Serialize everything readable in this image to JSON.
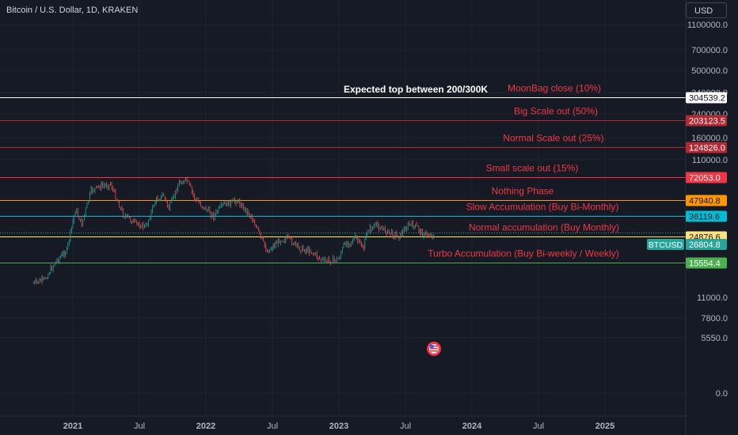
{
  "header": {
    "title": "Bitcoin / U.S. Dollar, 1D, KRAKEN",
    "currency_button": "USD"
  },
  "chart_data": {
    "type": "line",
    "symbol": "BTCUSD",
    "last_price": "26804.8",
    "scale": "log",
    "grid": true,
    "x_ticks": [
      "2021",
      "Jul",
      "2022",
      "Jul",
      "2023",
      "Jul",
      "2024",
      "Jul",
      "2025"
    ],
    "y_ticks": [
      "1100000.0",
      "700000.0",
      "500000.0",
      "340000.0",
      "240000.0",
      "160000.0",
      "110000.0",
      "11000.0",
      "7800.0",
      "5550.0",
      "0.0"
    ],
    "annotation": "Expected top between 200/300K",
    "levels": [
      {
        "label": "MoonBag close (10%)",
        "price": "304539.2",
        "color": "#ffffff",
        "label_color": "#f23645",
        "badge_bg": "#ffffff",
        "badge_fg": "#131722"
      },
      {
        "label": "Big Scale out (50%)",
        "price": "203123.5",
        "color": "#b22833",
        "label_color": "#f23645",
        "badge_bg": "#b22833",
        "badge_fg": "#ffffff"
      },
      {
        "label": "Normal Scale out (25%)",
        "price": "124826.0",
        "color": "#b22833",
        "label_color": "#f23645",
        "badge_bg": "#b22833",
        "badge_fg": "#ffffff"
      },
      {
        "label": "Small scale out (15%)",
        "price": "72053.0",
        "color": "#f23645",
        "label_color": "#f23645",
        "badge_bg": "#f23645",
        "badge_fg": "#ffffff"
      },
      {
        "label": "Nothing Phase",
        "price": "47940.8",
        "color": "#ff9800",
        "label_color": "#f23645",
        "badge_bg": "#ff9800",
        "badge_fg": "#131722"
      },
      {
        "label": "Slow Accumulation (Buy Bi-Monthly)",
        "price": "36119.6",
        "color": "#00bcd4",
        "label_color": "#f23645",
        "badge_bg": "#00bcd4",
        "badge_fg": "#131722"
      },
      {
        "label": "Normal accumulation (Buy Monthly)",
        "price": "24876.6",
        "color": "#ffeb3b",
        "label_color": "#f23645",
        "badge_bg": "#ffe082",
        "badge_fg": "#131722"
      },
      {
        "label": "Turbo Accumulation (Buy Bi-weekly / Weekly)",
        "price": "15554.4",
        "color": "#4caf50",
        "label_color": "#f23645",
        "badge_bg": "#4caf50",
        "badge_fg": "#ffffff"
      }
    ],
    "series": [
      {
        "date": [
          "2020-09-15",
          "2020-10-15",
          "2020-11-15",
          "2020-12-15",
          "2021-01-08",
          "2021-01-25",
          "2021-02-20",
          "2021-03-13",
          "2021-04-14",
          "2021-05-19",
          "2021-06-22",
          "2021-07-20",
          "2021-08-15",
          "2021-09-07",
          "2021-09-21",
          "2021-10-20",
          "2021-11-10",
          "2021-12-04",
          "2022-01-22",
          "2022-02-15",
          "2022-03-28",
          "2022-05-05",
          "2022-06-18",
          "2022-07-25",
          "2022-08-15",
          "2022-09-15",
          "2022-10-15",
          "2022-11-09",
          "2022-11-21",
          "2022-12-30",
          "2023-01-14",
          "2023-02-15",
          "2023-03-10",
          "2023-03-20",
          "2023-04-14",
          "2023-05-15",
          "2023-06-15",
          "2023-07-13",
          "2023-08-05",
          "2023-08-18",
          "2023-09-11",
          "2023-09-22"
        ],
        "values": [
          10700,
          11400,
          15800,
          19300,
          40500,
          31000,
          57000,
          61000,
          64000,
          37000,
          31500,
          29500,
          47500,
          52500,
          41000,
          66000,
          68000,
          48000,
          36000,
          43500,
          47500,
          36000,
          19000,
          23500,
          24000,
          20000,
          19200,
          16800,
          15900,
          16500,
          21000,
          24300,
          20000,
          28000,
          30300,
          27000,
          25000,
          31000,
          29200,
          26100,
          25200,
          26805
        ]
      }
    ]
  }
}
